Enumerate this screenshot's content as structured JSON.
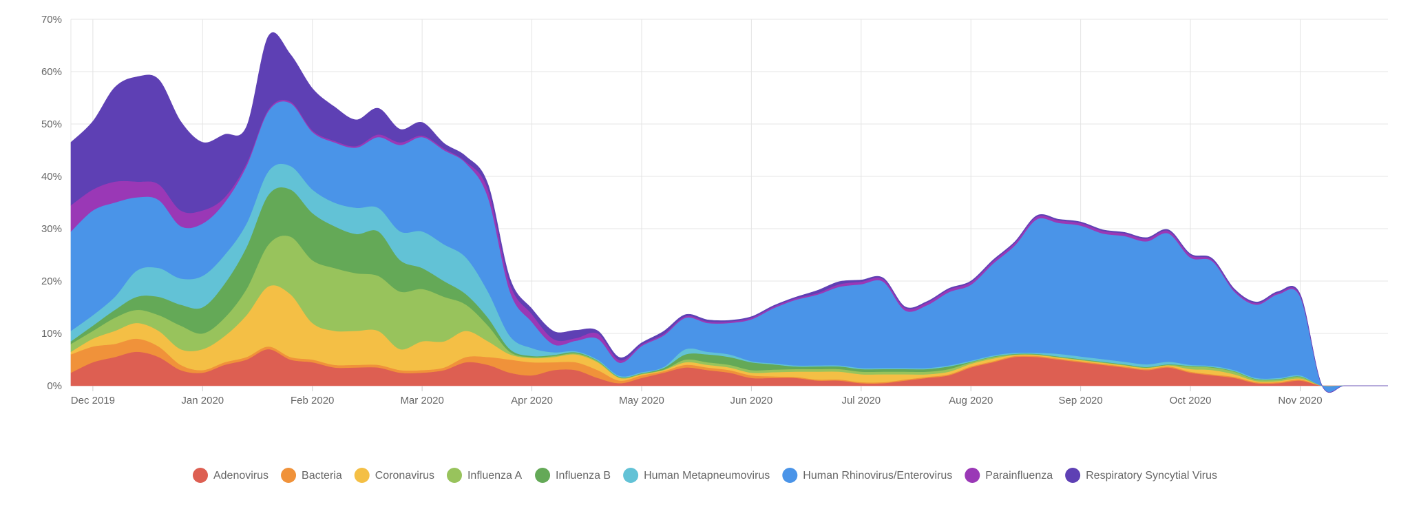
{
  "chart_data": {
    "type": "area",
    "stacked": true,
    "title": "",
    "xlabel": "",
    "ylabel": "",
    "ylim": [
      0,
      70
    ],
    "y_ticks": [
      "0%",
      "10%",
      "20%",
      "30%",
      "40%",
      "50%",
      "60%",
      "70%"
    ],
    "x_tick_labels": [
      "Dec 2019",
      "Jan 2020",
      "Feb 2020",
      "Mar 2020",
      "Apr 2020",
      "May 2020",
      "Jun 2020",
      "Jul 2020",
      "Aug 2020",
      "Sep 2020",
      "Oct 2020",
      "Nov 2020"
    ],
    "x_tick_weeks": [
      1,
      6,
      11,
      16,
      21,
      26,
      31,
      36,
      41,
      46,
      51,
      56
    ],
    "weeks": 60,
    "legend_position": "bottom-center",
    "series": [
      {
        "name": "Adenovirus",
        "color": "#dd5f52",
        "values": [
          2.5,
          4.5,
          5.5,
          6.5,
          5.5,
          3,
          2.5,
          4,
          5,
          7,
          5,
          4.5,
          3.5,
          3.5,
          3.5,
          2.5,
          2.5,
          3,
          4.5,
          4,
          2.5,
          2,
          3,
          3,
          1.5,
          0.5,
          1.5,
          2.5,
          3.5,
          3,
          2.5,
          1.5,
          1.5,
          1.5,
          1,
          1,
          0.5,
          0.5,
          1,
          1.5,
          2,
          3.5,
          4.5,
          5.5,
          5.5,
          5,
          4.5,
          4,
          3.5,
          3,
          3.5,
          2.5,
          2,
          1.5,
          0.5,
          0.5,
          1
        ]
      },
      {
        "name": "Bacteria",
        "color": "#f0923a",
        "values": [
          3.5,
          3,
          2.5,
          2.5,
          2,
          1,
          0.5,
          0.5,
          0.5,
          0.5,
          0.5,
          0.5,
          0.5,
          0.5,
          0.5,
          0.5,
          0.5,
          0.5,
          1,
          1.5,
          2.5,
          2.5,
          1.5,
          1.5,
          1.5,
          0.5,
          0.5,
          0.3,
          0.5,
          0.5,
          0.5,
          0.5,
          0.3,
          0.2,
          0.2,
          0.2,
          0.2,
          0.2,
          0.2,
          0.2,
          0.2,
          0.2,
          0.2,
          0.2,
          0.2,
          0.2,
          0.2,
          0.2,
          0.2,
          0.2,
          0.2,
          0.2,
          0.2,
          0.2,
          0.2,
          0.2,
          0.2
        ]
      },
      {
        "name": "Coronavirus",
        "color": "#f4bf45",
        "values": [
          0.5,
          1.5,
          2.5,
          3,
          3,
          3,
          4,
          5,
          8,
          11.5,
          12,
          7,
          6.5,
          6.5,
          6.5,
          4,
          5.5,
          5,
          5,
          3,
          1,
          0.8,
          1,
          1.5,
          1.5,
          0.5,
          0.2,
          0.2,
          0.5,
          0.5,
          0.5,
          0.5,
          0.8,
          1,
          1.5,
          1.5,
          1.5,
          1.5,
          1,
          0.5,
          0.5,
          0.5,
          0.5,
          0.2,
          0.2,
          0.2,
          0.2,
          0.2,
          0.2,
          0.2,
          0.2,
          0.5,
          0.8,
          0.5,
          0.2,
          0.2,
          0.2
        ]
      },
      {
        "name": "Influenza A",
        "color": "#98c35c",
        "values": [
          1.5,
          1.5,
          2.5,
          2.5,
          3,
          4.5,
          3,
          3.5,
          5,
          8,
          11,
          12,
          12,
          11,
          10.5,
          11,
          10,
          8.5,
          5,
          3,
          0.5,
          0.2,
          0.2,
          0.2,
          0.2,
          0.1,
          0.1,
          0.1,
          0.5,
          0.5,
          0.5,
          0.5,
          0.5,
          0.5,
          0.5,
          0.5,
          0.5,
          0.5,
          0.5,
          0.5,
          0.5,
          0.3,
          0.3,
          0.1,
          0.1,
          0.1,
          0.1,
          0.1,
          0.1,
          0.1,
          0.1,
          0.5,
          0.5,
          0.5,
          0.3,
          0.3,
          0.3
        ]
      },
      {
        "name": "Influenza B",
        "color": "#64a957",
        "values": [
          0.5,
          1,
          1.5,
          2.5,
          3.5,
          4,
          5,
          6.5,
          8,
          9.5,
          9,
          9,
          8,
          7.5,
          8.5,
          6,
          4,
          3,
          2,
          1.5,
          0.5,
          0.2,
          0.2,
          0.2,
          0.1,
          0.1,
          0.1,
          0.3,
          1,
          1.5,
          1.5,
          1.5,
          1,
          0.5,
          0.5,
          0.5,
          0.5,
          0.5,
          0.5,
          0.5,
          0.5,
          0.1,
          0.1,
          0.1,
          0.1,
          0.1,
          0.1,
          0.1,
          0.1,
          0.1,
          0.1,
          0.1,
          0.1,
          0.1,
          0.1,
          0.1,
          0.1
        ]
      },
      {
        "name": "Human Metapneumovirus",
        "color": "#62c2d6",
        "values": [
          2,
          2,
          2.5,
          5,
          5.5,
          5,
          6,
          5.5,
          4.5,
          4.5,
          4.5,
          4.5,
          4.5,
          5,
          4.5,
          5.5,
          7,
          7,
          7,
          5,
          2.5,
          1.5,
          0.5,
          0.2,
          0.2,
          0.2,
          0.2,
          0.2,
          1,
          0.5,
          0.5,
          0.2,
          0.2,
          0.2,
          0.2,
          0.2,
          0.2,
          0.2,
          0.2,
          0.2,
          0.2,
          0.2,
          0.2,
          0.2,
          0.2,
          0.5,
          0.5,
          0.5,
          0.5,
          0.5,
          0.5,
          0.2,
          0.2,
          0.2,
          0.2,
          0.2,
          0.2
        ]
      },
      {
        "name": "Human Rhinovirus/Enterovirus",
        "color": "#4a94e8",
        "values": [
          19,
          20,
          18,
          14,
          13,
          10,
          10,
          10,
          11,
          11.5,
          12,
          11,
          11.5,
          11.5,
          13.5,
          16.5,
          18,
          18,
          18,
          18,
          8.5,
          5,
          1.5,
          2,
          4,
          2.5,
          5,
          6,
          6,
          5.5,
          6,
          8,
          10.5,
          12.5,
          13.5,
          15,
          16,
          16.5,
          11,
          12,
          14,
          14.5,
          17.5,
          20.5,
          25.5,
          25,
          25,
          24,
          24,
          23.5,
          24.5,
          20.5,
          20,
          15,
          14,
          16,
          15
        ]
      },
      {
        "name": "Parainfluenza",
        "color": "#9a38b6",
        "values": [
          5,
          4,
          4,
          3,
          3,
          3,
          2.5,
          1,
          0.5,
          0.3,
          0.3,
          0.3,
          0.3,
          0.3,
          0.5,
          0.5,
          0.3,
          0.3,
          0.3,
          1.5,
          1.5,
          1.5,
          1,
          0.5,
          1,
          0.5,
          0.3,
          0.3,
          0.3,
          0.3,
          0.3,
          0.3,
          0.3,
          0.3,
          0.3,
          0.5,
          0.5,
          0.5,
          0.5,
          0.5,
          0.5,
          0.5,
          0.5,
          0.5,
          0.5,
          0.5,
          0.5,
          0.5,
          0.5,
          0.5,
          0.5,
          0.5,
          0.3,
          0.3,
          0.3,
          0.3,
          0.3
        ]
      },
      {
        "name": "Respiratory Syncytial Virus",
        "color": "#5e40b4",
        "values": [
          12,
          13,
          18,
          20,
          20,
          17,
          13,
          12,
          7,
          14,
          9,
          8,
          6.5,
          5,
          5,
          2.5,
          2.5,
          1,
          1,
          1,
          1,
          1,
          1.5,
          1.5,
          0.5,
          0.5,
          0.3,
          0.5,
          0.3,
          0.3,
          0.2,
          0.2,
          0.2,
          0.2,
          0.5,
          0.5,
          0.3,
          0.2,
          0.2,
          0.2,
          0.2,
          0.2,
          0.2,
          0.2,
          0.2,
          0.2,
          0.2,
          0.2,
          0.2,
          0.2,
          0.2,
          0.2,
          0.2,
          0.2,
          0.2,
          0.2,
          0.2
        ]
      }
    ]
  }
}
